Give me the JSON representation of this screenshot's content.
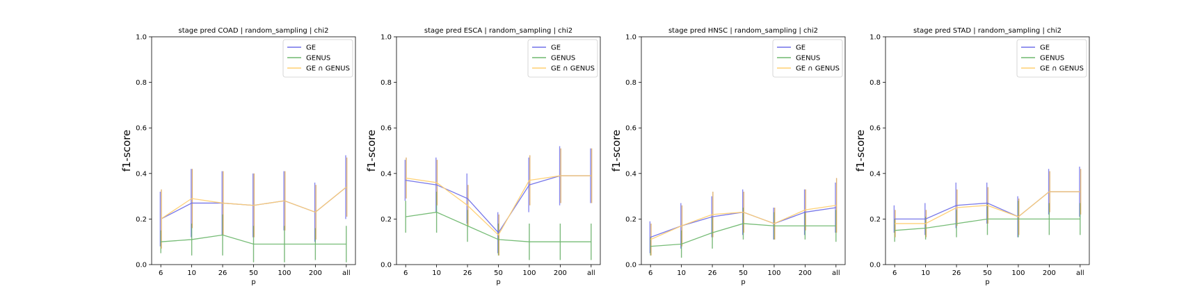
{
  "figure": {
    "background": "#ffffff"
  },
  "series_styles": [
    {
      "name": "GE",
      "color": "#7070e8",
      "err_color": "#6b6bea"
    },
    {
      "name": "GENUS",
      "color": "#6fb86f",
      "err_color": "#5aa85a"
    },
    {
      "name": "GE ∩ GENUS",
      "color": "#ffcf70",
      "err_color": "#d8a050"
    }
  ],
  "chart_data": [
    {
      "type": "line",
      "title": "stage pred COAD | random_sampling | chi2",
      "xlabel": "p",
      "ylabel": "f1-score",
      "categories": [
        "6",
        "10",
        "26",
        "50",
        "100",
        "200",
        "all"
      ],
      "yticks": [
        "0.0",
        "0.2",
        "0.4",
        "0.6",
        "0.8",
        "1.0"
      ],
      "ylim": [
        0,
        1
      ],
      "legend": "top-right",
      "series": [
        {
          "name": "GE",
          "values": [
            0.2,
            0.27,
            0.27,
            0.26,
            0.28,
            0.23,
            0.34
          ],
          "err": [
            0.12,
            0.15,
            0.14,
            0.14,
            0.13,
            0.13,
            0.14
          ]
        },
        {
          "name": "GENUS",
          "values": [
            0.1,
            0.11,
            0.13,
            0.09,
            0.09,
            0.09,
            0.09
          ],
          "err": [
            0.05,
            0.07,
            0.09,
            0.08,
            0.08,
            0.07,
            0.08
          ]
        },
        {
          "name": "GE ∩ GENUS",
          "values": [
            0.2,
            0.29,
            0.27,
            0.26,
            0.28,
            0.23,
            0.34
          ],
          "err": [
            0.13,
            0.13,
            0.14,
            0.14,
            0.13,
            0.12,
            0.13
          ]
        }
      ]
    },
    {
      "type": "line",
      "title": "stage pred ESCA | random_sampling | chi2",
      "xlabel": "p",
      "ylabel": "f1-score",
      "categories": [
        "6",
        "10",
        "26",
        "50",
        "100",
        "200",
        "all"
      ],
      "yticks": [
        "0.0",
        "0.2",
        "0.4",
        "0.6",
        "0.8",
        "1.0"
      ],
      "ylim": [
        0,
        1
      ],
      "legend": "top-right",
      "series": [
        {
          "name": "GE",
          "values": [
            0.37,
            0.35,
            0.29,
            0.14,
            0.35,
            0.39,
            0.39
          ],
          "err": [
            0.09,
            0.12,
            0.11,
            0.09,
            0.12,
            0.13,
            0.12
          ]
        },
        {
          "name": "GENUS",
          "values": [
            0.21,
            0.23,
            0.17,
            0.11,
            0.1,
            0.1,
            0.1
          ],
          "err": [
            0.07,
            0.09,
            0.07,
            0.07,
            0.08,
            0.08,
            0.08
          ]
        },
        {
          "name": "GE ∩ GENUS",
          "values": [
            0.38,
            0.36,
            0.26,
            0.13,
            0.37,
            0.39,
            0.39
          ],
          "err": [
            0.09,
            0.1,
            0.09,
            0.09,
            0.11,
            0.12,
            0.12
          ]
        }
      ]
    },
    {
      "type": "line",
      "title": "stage pred HNSC | random_sampling | chi2",
      "xlabel": "p",
      "ylabel": "f1-score",
      "categories": [
        "6",
        "10",
        "26",
        "50",
        "100",
        "200",
        "all"
      ],
      "yticks": [
        "0.0",
        "0.2",
        "0.4",
        "0.6",
        "0.8",
        "1.0"
      ],
      "ylim": [
        0,
        1
      ],
      "legend": "top-right",
      "series": [
        {
          "name": "GE",
          "values": [
            0.12,
            0.17,
            0.21,
            0.23,
            0.18,
            0.23,
            0.25
          ],
          "err": [
            0.07,
            0.1,
            0.09,
            0.1,
            0.07,
            0.1,
            0.11
          ]
        },
        {
          "name": "GENUS",
          "values": [
            0.08,
            0.09,
            0.14,
            0.18,
            0.17,
            0.17,
            0.17
          ],
          "err": [
            0.04,
            0.06,
            0.07,
            0.07,
            0.06,
            0.06,
            0.07
          ]
        },
        {
          "name": "GE ∩ GENUS",
          "values": [
            0.11,
            0.17,
            0.22,
            0.23,
            0.18,
            0.24,
            0.26
          ],
          "err": [
            0.07,
            0.09,
            0.1,
            0.09,
            0.07,
            0.09,
            0.12
          ]
        }
      ]
    },
    {
      "type": "line",
      "title": "stage pred STAD | random_sampling | chi2",
      "xlabel": "p",
      "ylabel": "f1-score",
      "categories": [
        "6",
        "10",
        "26",
        "50",
        "100",
        "200",
        "all"
      ],
      "yticks": [
        "0.0",
        "0.2",
        "0.4",
        "0.6",
        "0.8",
        "1.0"
      ],
      "ylim": [
        0,
        1
      ],
      "legend": "top-right",
      "series": [
        {
          "name": "GE",
          "values": [
            0.2,
            0.2,
            0.26,
            0.27,
            0.21,
            0.32,
            0.32
          ],
          "err": [
            0.06,
            0.07,
            0.1,
            0.09,
            0.09,
            0.1,
            0.11
          ]
        },
        {
          "name": "GENUS",
          "values": [
            0.15,
            0.16,
            0.18,
            0.2,
            0.2,
            0.2,
            0.2
          ],
          "err": [
            0.05,
            0.05,
            0.06,
            0.07,
            0.08,
            0.07,
            0.07
          ]
        },
        {
          "name": "GE ∩ GENUS",
          "values": [
            0.18,
            0.18,
            0.25,
            0.26,
            0.21,
            0.32,
            0.32
          ],
          "err": [
            0.06,
            0.06,
            0.08,
            0.08,
            0.08,
            0.09,
            0.1
          ]
        }
      ]
    }
  ]
}
